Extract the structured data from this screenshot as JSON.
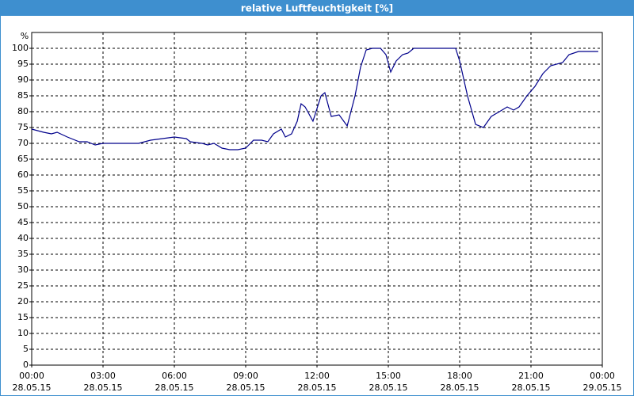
{
  "chart_data": {
    "type": "line",
    "title": "relative Luftfeuchtigkeit [%]",
    "y_label": "%",
    "x": [
      0,
      0.5,
      0.83,
      1.07,
      1.5,
      2,
      2.33,
      2.67,
      3,
      4,
      4.5,
      5,
      5.5,
      6,
      6.5,
      6.67,
      7.17,
      7.4,
      7.67,
      8,
      8.33,
      8.67,
      9,
      9.33,
      9.67,
      9.93,
      10.17,
      10.5,
      10.67,
      10.93,
      11.17,
      11.33,
      11.5,
      11.83,
      12.17,
      12.33,
      12.6,
      12.93,
      13.27,
      13.6,
      13.83,
      14.07,
      14.33,
      14.67,
      14.9,
      15.1,
      15.33,
      15.6,
      15.83,
      16.07,
      17.83,
      18,
      18.33,
      18.67,
      19,
      19.33,
      19.67,
      20,
      20.27,
      20.5,
      20.83,
      21.17,
      21.5,
      21.83,
      22.33,
      22.6,
      23,
      23.33,
      23.83
    ],
    "series": [
      {
        "name": "relative Luftfeuchtigkeit",
        "color": "#00008b",
        "values": [
          74.5,
          73.5,
          73,
          73.5,
          72,
          70.5,
          70.5,
          69.5,
          70,
          70,
          70,
          71,
          71.5,
          72,
          71.5,
          70.5,
          70,
          69.5,
          70,
          68.5,
          68,
          68,
          68.5,
          71,
          71,
          70.5,
          73,
          74.5,
          72,
          73,
          77,
          82.5,
          81.5,
          77,
          85,
          86,
          78.5,
          79,
          75.5,
          85,
          94,
          99.5,
          100,
          100,
          98,
          92.5,
          96,
          98,
          98.5,
          100,
          100,
          96,
          85,
          76,
          75,
          78.5,
          80,
          81.5,
          80.5,
          81.5,
          85,
          88,
          92,
          94.5,
          95.5,
          98,
          99,
          99,
          99
        ]
      }
    ],
    "xlim": [
      0,
      24
    ],
    "xticks": [
      {
        "value": 0,
        "label": [
          "00:00",
          "28.05.15"
        ]
      },
      {
        "value": 3,
        "label": [
          "03:00",
          "28.05.15"
        ]
      },
      {
        "value": 6,
        "label": [
          "06:00",
          "28.05.15"
        ]
      },
      {
        "value": 9,
        "label": [
          "09:00",
          "28.05.15"
        ]
      },
      {
        "value": 12,
        "label": [
          "12:00",
          "28.05.15"
        ]
      },
      {
        "value": 15,
        "label": [
          "15:00",
          "28.05.15"
        ]
      },
      {
        "value": 18,
        "label": [
          "18:00",
          "28.05.15"
        ]
      },
      {
        "value": 21,
        "label": [
          "21:00",
          "28.05.15"
        ]
      },
      {
        "value": 24,
        "label": [
          "00:00",
          "29.05.15"
        ]
      }
    ],
    "ylim": [
      0,
      105
    ],
    "yticks": [
      0,
      5,
      10,
      15,
      20,
      25,
      30,
      35,
      40,
      45,
      50,
      55,
      60,
      65,
      70,
      75,
      80,
      85,
      90,
      95,
      100
    ],
    "grid": true
  }
}
